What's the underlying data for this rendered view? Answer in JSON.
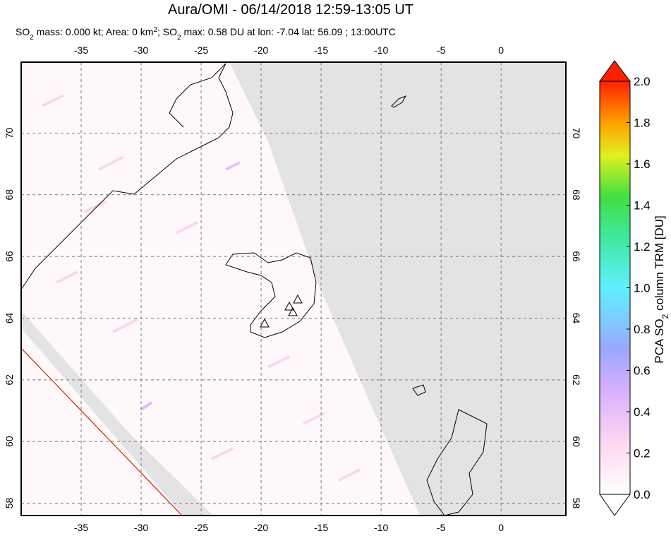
{
  "chart_data": {
    "type": "map",
    "title": "Aura/OMI - 06/14/2018 12:59-13:05 UT",
    "subtitle": [
      "SO",
      "2",
      " mass: 0.000 kt; Area: 0 km",
      "2",
      "; SO",
      "2",
      " max: 0.58 DU at lon: -7.04 lat: 56.09 ; 13:00UTC"
    ],
    "xlim": [
      -40,
      5.4
    ],
    "ylim": [
      57.6,
      72.3
    ],
    "xticks": [
      -35,
      -30,
      -25,
      -20,
      -15,
      -10,
      -5,
      0
    ],
    "yticks": [
      58,
      60,
      62,
      64,
      66,
      68,
      70
    ],
    "grid": true,
    "colorbar": {
      "label": [
        "PCA SO",
        "2",
        " column TRM [DU]"
      ],
      "lim": [
        0,
        2
      ],
      "ticks": [
        {
          "value": 0,
          "label": "0.0"
        },
        {
          "value": 0.2,
          "label": "0.2"
        },
        {
          "value": 0.4,
          "label": "0.4"
        },
        {
          "value": 0.6,
          "label": "0.6"
        },
        {
          "value": 0.8,
          "label": "0.8"
        },
        {
          "value": 1,
          "label": "1.0"
        },
        {
          "value": 1.2,
          "label": "1.2"
        },
        {
          "value": 1.4,
          "label": "1.4"
        },
        {
          "value": 1.6,
          "label": "1.6"
        },
        {
          "value": 1.8,
          "label": "1.8"
        },
        {
          "value": 2,
          "label": "2.0"
        }
      ]
    }
  }
}
